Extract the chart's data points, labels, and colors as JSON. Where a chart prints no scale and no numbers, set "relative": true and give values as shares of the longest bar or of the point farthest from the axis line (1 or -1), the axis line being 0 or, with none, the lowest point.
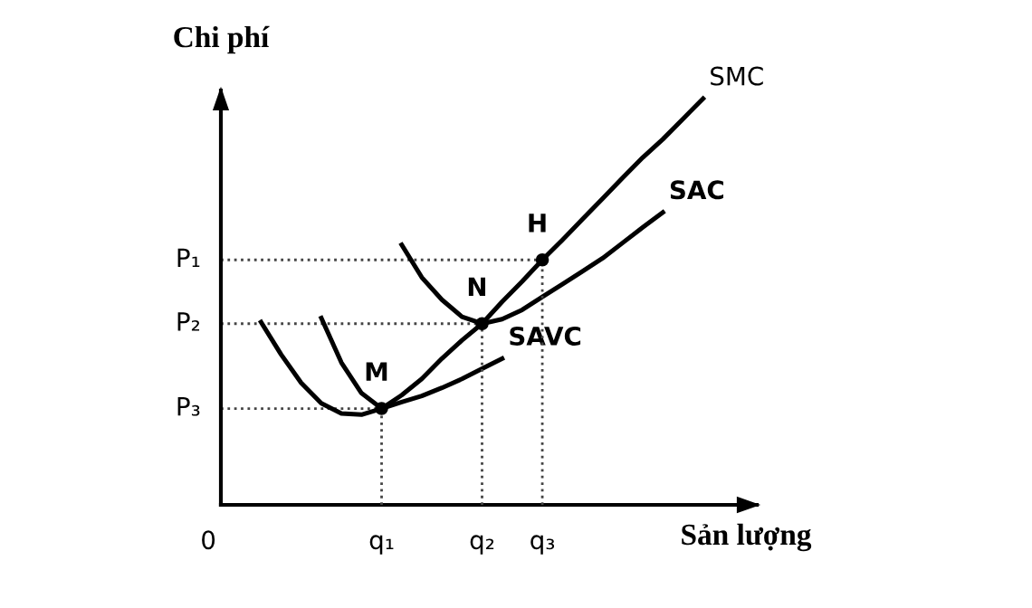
{
  "chart_data": {
    "type": "line",
    "relative": true,
    "xlabel": "Sản lượng",
    "ylabel": "Chi phí",
    "categories": [
      null,
      null,
      null,
      null,
      null,
      null,
      null,
      null,
      "q₁",
      null,
      null,
      null,
      null,
      "q₂",
      null,
      null,
      "q₃",
      null,
      null,
      null,
      null,
      null,
      null,
      null,
      null,
      null,
      null
    ],
    "series": [
      {
        "name": "SMC",
        "color": "#000000",
        "values": [
          null,
          null,
          null,
          null,
          null,
          0.46,
          0.35,
          0.275,
          0.237,
          0.27,
          0.31,
          0.36,
          0.405,
          0.446,
          0.5,
          0.55,
          0.603,
          0.652,
          0.703,
          0.754,
          0.805,
          0.855,
          0.9,
          0.95,
          1.0,
          null,
          null
        ]
      },
      {
        "name": "SAC",
        "color": "#000000",
        "values": [
          null,
          null,
          null,
          null,
          null,
          null,
          null,
          null,
          null,
          0.64,
          0.56,
          0.505,
          0.463,
          0.446,
          0.457,
          0.48,
          0.512,
          0.543,
          0.575,
          0.607,
          0.645,
          0.683,
          0.72,
          null,
          null,
          null,
          null
        ]
      },
      {
        "name": "SAVC",
        "color": "#000000",
        "values": [
          null,
          null,
          0.45,
          0.37,
          0.3,
          0.25,
          0.225,
          0.222,
          0.237,
          0.253,
          0.268,
          0.288,
          0.31,
          0.335,
          0.36,
          null,
          null,
          null,
          null,
          null,
          null,
          null,
          null,
          null,
          null,
          null,
          null
        ]
      },
      {
        "type": "scatter",
        "color": "#000000",
        "values": [
          null,
          null,
          null,
          null,
          null,
          null,
          null,
          null,
          0.237,
          null,
          null,
          null,
          null,
          0.446,
          null,
          null,
          0.603,
          null,
          null,
          null,
          null,
          null,
          null,
          null,
          null,
          null,
          null
        ]
      }
    ],
    "annotations": [
      "0",
      {
        "text": "M",
        "x": "q₁",
        "y": 0.237
      },
      {
        "text": "N",
        "x": "q₂",
        "y": 0.446
      },
      {
        "text": "H",
        "x": "q₃",
        "y": 0.603
      }
    ],
    "ref_lines": [
      {
        "axis": "y",
        "value": 0.603,
        "label": "P₁",
        "line_style": "dotted"
      },
      {
        "axis": "y",
        "value": 0.446,
        "label": "P₂",
        "line_style": "dotted"
      },
      {
        "axis": "y",
        "value": 0.237,
        "label": "P₃",
        "line_style": "dotted"
      }
    ]
  }
}
